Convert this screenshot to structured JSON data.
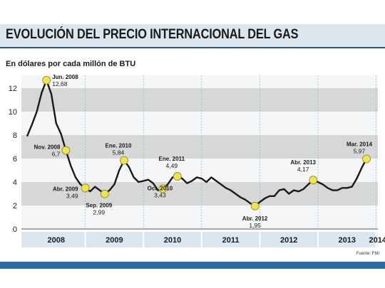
{
  "header": {
    "title": "EVOLUCIÓN DEL PRECIO INTERNACIONAL DEL GAS",
    "subtitle": "En dólares por cada millón de BTU",
    "source": "Fuente: FMI"
  },
  "colors": {
    "line": "#1a1a1a",
    "marker": "#ede54a",
    "band": "#cccccc",
    "year_bar": "#dbe6ef",
    "accent": "#2e6aa6"
  },
  "chart_data": {
    "type": "line",
    "title": "EVOLUCIÓN DEL PRECIO INTERNACIONAL DEL GAS",
    "ylabel": "En dólares por cada millón de BTU",
    "xlabel": "",
    "ylim": [
      0,
      13
    ],
    "yticks": [
      "0",
      "2",
      "4",
      "6",
      "8",
      "10",
      "12"
    ],
    "years": [
      "2008",
      "2009",
      "2010",
      "2011",
      "2012",
      "2013",
      "2014"
    ],
    "grid": "horizontal bands",
    "series": [
      {
        "values": [
          7.9,
          8.9,
          10.0,
          11.6,
          12.68,
          11.5,
          9.0,
          8.1,
          6.7,
          5.4,
          4.4,
          3.8,
          3.49,
          3.2,
          3.6,
          3.3,
          2.99,
          3.3,
          3.8,
          5.0,
          5.84,
          5.3,
          4.4,
          4.0,
          4.1,
          4.2,
          3.9,
          3.3,
          3.43,
          3.8,
          4.4,
          4.49,
          4.3,
          3.9,
          4.1,
          4.4,
          4.3,
          4.0,
          4.4,
          4.1,
          3.8,
          3.5,
          3.3,
          3.0,
          2.7,
          2.5,
          2.2,
          1.95,
          2.3,
          2.6,
          2.8,
          2.8,
          3.3,
          3.4,
          3.0,
          3.3,
          3.2,
          3.4,
          3.8,
          4.17,
          4.0,
          3.8,
          3.5,
          3.3,
          3.3,
          3.5,
          3.5,
          3.6,
          4.3,
          5.2,
          5.97
        ]
      }
    ],
    "annotations": [
      {
        "label": "Jun. 2008",
        "value": "12,68"
      },
      {
        "label": "Nov. 2008",
        "value": "6,7"
      },
      {
        "label": "Abr. 2009",
        "value": "3,49"
      },
      {
        "label": "Sep. 2009",
        "value": "2,99"
      },
      {
        "label": "Ene. 2010",
        "value": "5,84"
      },
      {
        "label": "Oct. 2010",
        "value": "3,43"
      },
      {
        "label": "Ene. 2011",
        "value": "4,49"
      },
      {
        "label": "Abr. 2012",
        "value": "1,95"
      },
      {
        "label": "Abr. 2013",
        "value": "4,17"
      },
      {
        "label": "Mar. 2014",
        "value": "5,97"
      }
    ]
  }
}
